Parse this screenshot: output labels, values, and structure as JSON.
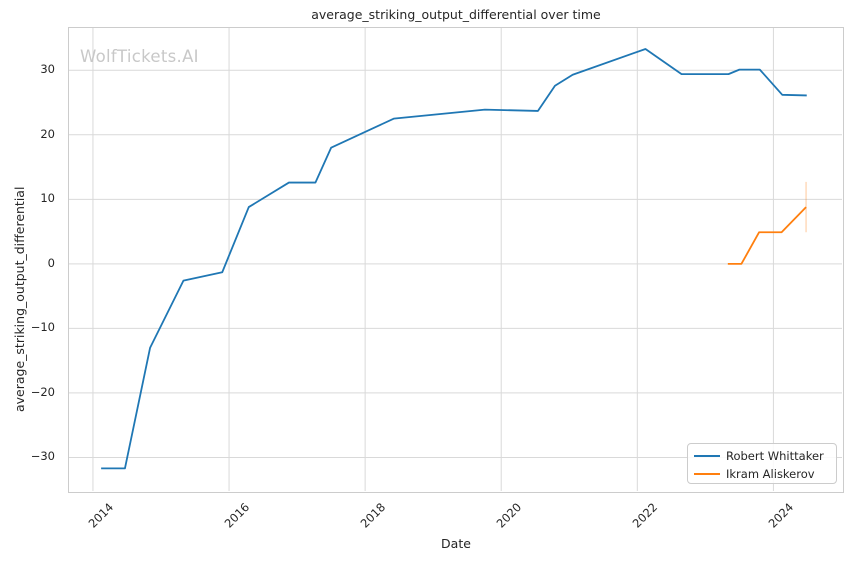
{
  "watermark": {
    "text": "WolfTickets.AI",
    "color": "#c8c8c8"
  },
  "colors": {
    "grid": "#d9d9d9",
    "spine": "#cccccc",
    "text": "#262626",
    "background": "#ffffff",
    "series_blue": "#1f77b4",
    "series_orange": "#ff7f0e"
  },
  "chart_data": {
    "type": "line",
    "title": "average_striking_output_differential over time",
    "xlabel": "Date",
    "ylabel": "average_striking_output_differential",
    "grid": true,
    "legend_position": "lower right",
    "xlim": [
      2013.648,
      2025.008
    ],
    "ylim": [
      -35.2,
      36.55
    ],
    "x_ticks": [
      2014,
      2016,
      2018,
      2020,
      2022,
      2024
    ],
    "x_tick_labels": [
      "2014",
      "2016",
      "2018",
      "2020",
      "2022",
      "2024"
    ],
    "y_ticks": [
      30,
      20,
      10,
      0,
      -10,
      -20,
      -30
    ],
    "y_tick_labels": [
      "30",
      "20",
      "10",
      "0",
      "−10",
      "−20",
      "−30"
    ],
    "series": [
      {
        "name": "Robert Whittaker",
        "color": "#1f77b4",
        "x": [
          2014.12,
          2014.47,
          2014.84,
          2015.33,
          2015.9,
          2016.29,
          2016.88,
          2017.27,
          2017.5,
          2018.42,
          2019.76,
          2020.54,
          2020.79,
          2021.05,
          2022.12,
          2022.65,
          2023.34,
          2023.5,
          2023.8,
          2024.13,
          2024.49
        ],
        "y": [
          -31.7,
          -31.7,
          -13.0,
          -2.6,
          -1.3,
          8.8,
          12.6,
          12.6,
          18.0,
          22.5,
          23.9,
          23.7,
          27.6,
          29.3,
          33.3,
          29.4,
          29.4,
          30.1,
          30.1,
          26.2,
          26.1
        ]
      },
      {
        "name": "Ikram Aliskerov",
        "color": "#ff7f0e",
        "x": [
          2023.33,
          2023.53,
          2023.79,
          2024.12,
          2024.48
        ],
        "y": [
          0.0,
          0.0,
          4.9,
          4.9,
          8.8
        ]
      }
    ],
    "annotations": [
      {
        "type": "vertical-segment",
        "x": 2024.48,
        "y1": 4.9,
        "y2": 12.7,
        "color": "#ff7f0e",
        "opacity": 0.3
      }
    ]
  }
}
